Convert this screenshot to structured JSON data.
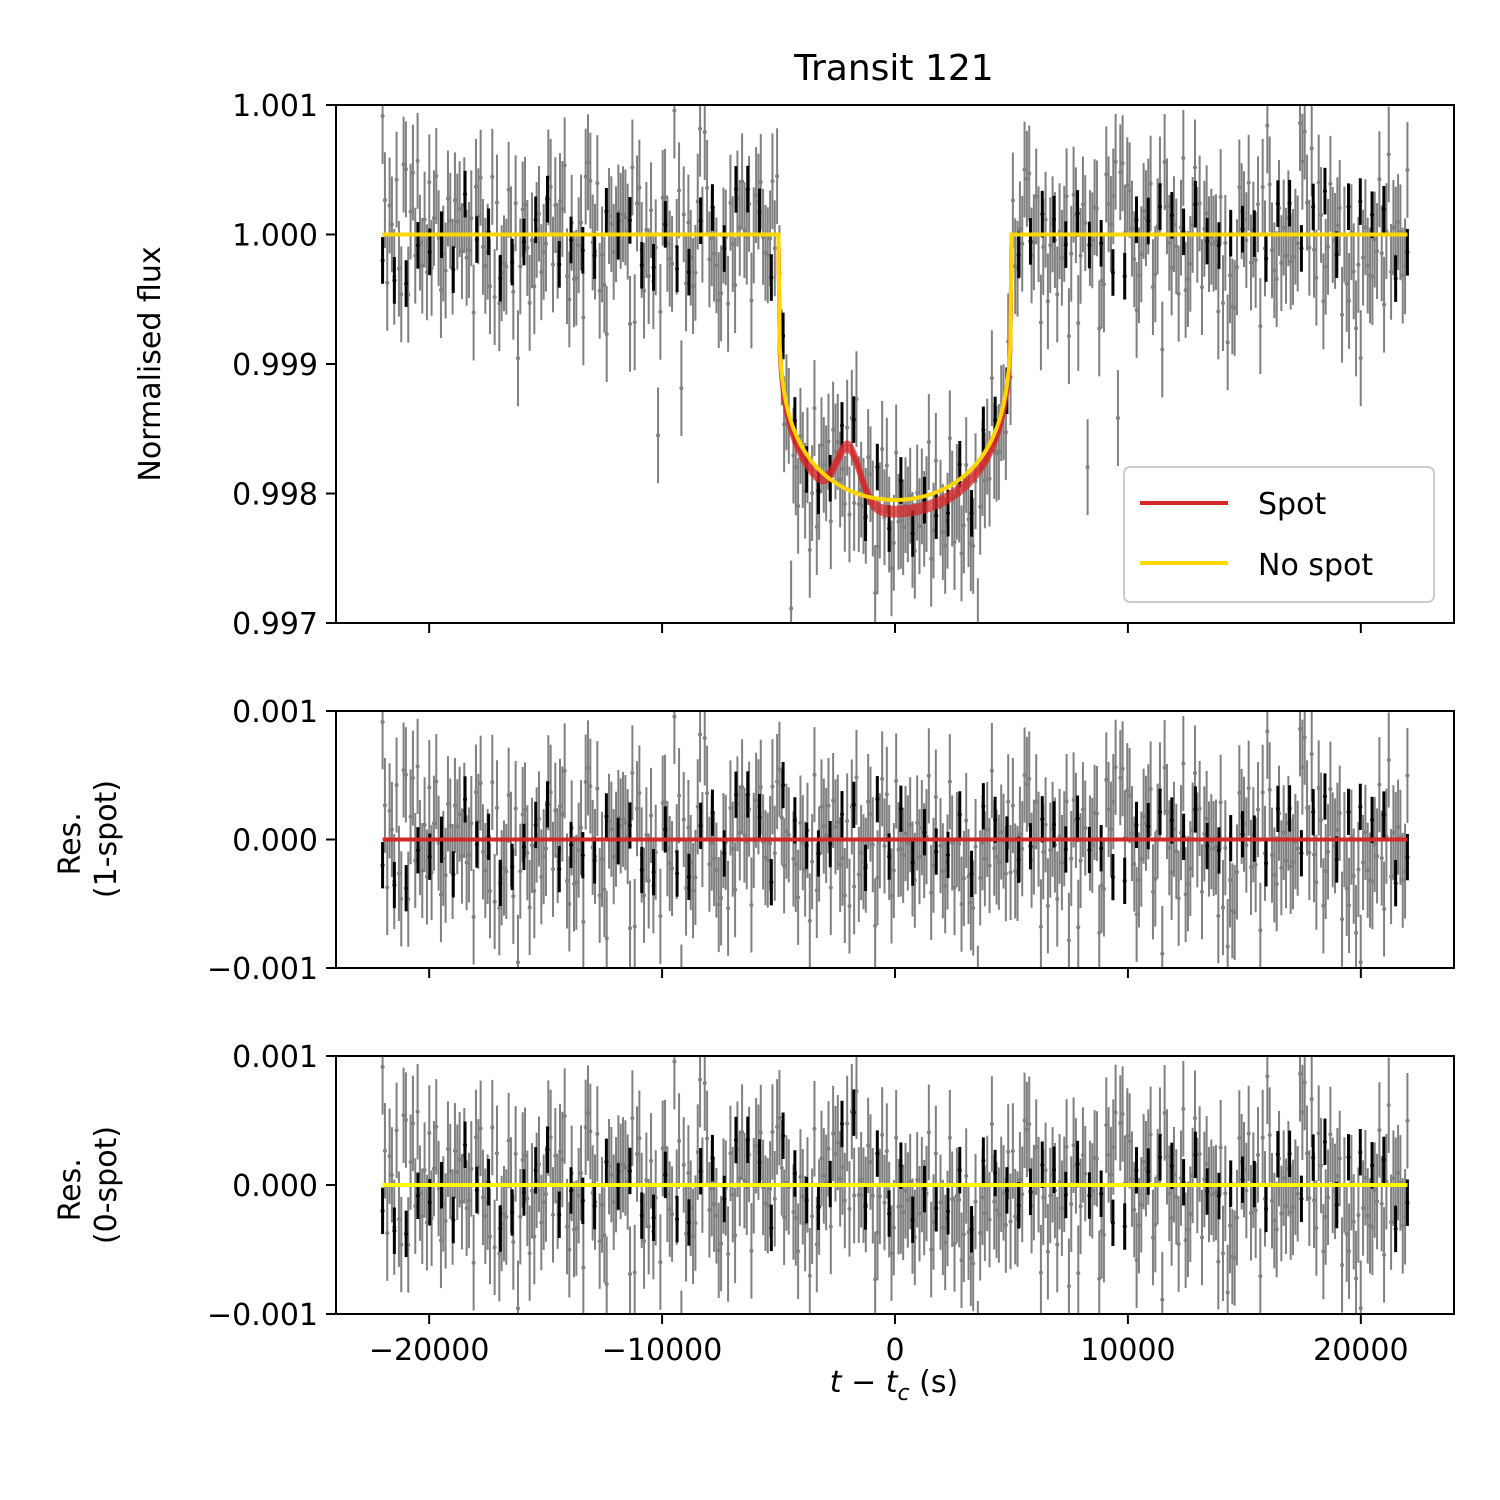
{
  "chart_data": [
    {
      "type": "scatter",
      "panel": "main",
      "title": "Transit 121",
      "ylabel": "Normalised flux",
      "xlim": [
        -24000,
        24000
      ],
      "ylim": [
        0.997,
        1.001
      ],
      "yticks": [
        0.997,
        0.998,
        0.999,
        1.0,
        1.001
      ],
      "ytick_labels": [
        "0.997",
        "0.998",
        "0.999",
        "1.000",
        "1.001"
      ],
      "xticks_shown": false,
      "transit": {
        "ingress": -5000,
        "egress": 5000,
        "depth_center": 0.99795,
        "baseline": 1.0
      },
      "spot": {
        "center": -2000,
        "amplitude": 0.00042,
        "width": 500
      },
      "data_x_range": [
        -22000,
        22000
      ],
      "raw_error": 0.00037,
      "binned_error": 0.00018,
      "legend": {
        "position": "lower right",
        "entries": [
          {
            "label": "Spot",
            "color": "#d62728"
          },
          {
            "label": "No spot",
            "color": "#ffd700"
          }
        ]
      }
    },
    {
      "type": "scatter",
      "panel": "res1",
      "ylabel_line1": "Res.",
      "ylabel_line2": "(1-spot)",
      "ylim": [
        -0.001,
        0.001
      ],
      "yticks": [
        -0.001,
        0.0,
        0.001
      ],
      "ytick_labels": [
        "−0.001",
        "0.000",
        "0.001"
      ],
      "model_line": {
        "y": 0.0,
        "color": "#d62728"
      }
    },
    {
      "type": "scatter",
      "panel": "res0",
      "ylabel_line1": "Res.",
      "ylabel_line2": "(0-spot)",
      "xlabel": "t − t",
      "xlabel_sub": "c",
      "xlabel_unit": " (s)",
      "ylim": [
        -0.001,
        0.001
      ],
      "yticks": [
        -0.001,
        0.0,
        0.001
      ],
      "ytick_labels": [
        "−0.001",
        "0.000",
        "0.001"
      ],
      "xticks": [
        -20000,
        -10000,
        0,
        10000,
        20000
      ],
      "xtick_labels": [
        "−20000",
        "−10000",
        "0",
        "10000",
        "20000"
      ],
      "model_line": {
        "y": 0.0,
        "color": "#ffff00"
      }
    }
  ],
  "colors": {
    "raw": "#808080",
    "binned": "#000000",
    "spot": "#d62728",
    "nospot": "#ffd700",
    "res0_line": "#ffff00"
  }
}
